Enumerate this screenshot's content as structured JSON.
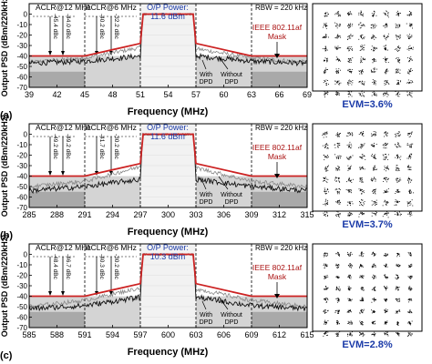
{
  "figure": {
    "y_label": "Output PSD (dBm/220kHz)",
    "x_label": "Frequency (MHz)",
    "ylim": [
      -70,
      10
    ],
    "yticks": [
      0,
      -10,
      -20,
      -30,
      -40,
      -50,
      -60,
      -70
    ],
    "colors": {
      "mask": "#cc2222",
      "with_dpd": "#111111",
      "without_dpd": "#888888",
      "channel_bg": "#f2f2f2",
      "shade_dark": "#a9a9a9",
      "shade_light": "#d4d4d4",
      "title_blue": "#1a3aa8",
      "evm_blue": "#1a3aa8",
      "mask_text": "#aa1111"
    },
    "panels": [
      {
        "label": "(a)",
        "rbw": "RBW = 220 kHz",
        "power_title": "O/P Power:",
        "power_value": "11.6 dBm",
        "aclr12_label": "ACLR@12 MHz",
        "aclr6_label": "ACLR@6 MHz",
        "aclr_values": [
          "-45.4 dBc",
          "-44.0 dBc",
          "-40.2 dBc",
          "-32.2 dBc"
        ],
        "mask_label_line1": "IEEE 802.11af",
        "mask_label_line2": "Mask",
        "with_label": [
          "With",
          "DPD"
        ],
        "without_label": [
          "Without",
          "DPD"
        ],
        "evm": "EVM=3.6%",
        "chart_data": {
          "type": "line",
          "xlim": [
            39,
            69
          ],
          "xticks": [
            39,
            42,
            45,
            48,
            51,
            54,
            57,
            60,
            63,
            66,
            69
          ],
          "dashed_x": [
            45,
            51,
            57,
            63
          ],
          "channel": [
            51,
            57
          ],
          "in_band_dbm": 0,
          "mask": {
            "x": [
              39,
              45,
              51,
              51.3,
              56.7,
              57,
              63,
              69
            ],
            "y": [
              -40,
              -40,
              -28,
              0,
              0,
              -28,
              -40,
              -40
            ]
          },
          "series": [
            {
              "name": "With DPD",
              "edges": {
                "x": [
                  39,
                  45,
                  51,
                  57,
                  63,
                  69
                ],
                "y": [
                  -47,
                  -45,
                  -40,
                  -40,
                  -45,
                  -47
                ]
              }
            },
            {
              "name": "Without DPD",
              "edges": {
                "x": [
                  39,
                  45,
                  51,
                  57,
                  63,
                  69
                ],
                "y": [
                  -46,
                  -42,
                  -32,
                  -33,
                  -42,
                  -46
                ]
              }
            }
          ]
        }
      },
      {
        "label": "(b)",
        "rbw": "RBW = 220 kHz",
        "power_title": "O/P Power:",
        "power_value": "11.6 dBm",
        "aclr12_label": "ACLR@12 MHz",
        "aclr6_label": "ACLR@6 MHz",
        "aclr_values": [
          "-49.2 dBc",
          "-49.2 dBc",
          "-41.7 dBc",
          "-30.2 dBc"
        ],
        "mask_label_line1": "IEEE 802.11af",
        "mask_label_line2": "Mask",
        "with_label": [
          "With",
          "DPD"
        ],
        "without_label": [
          "Without",
          "DPD"
        ],
        "evm": "EVM=3.7%",
        "chart_data": {
          "type": "line",
          "xlim": [
            285,
            315
          ],
          "xticks": [
            285,
            288,
            291,
            294,
            297,
            300,
            303,
            306,
            309,
            312,
            315
          ],
          "dashed_x": [
            291,
            297,
            303,
            309
          ],
          "channel": [
            297,
            303
          ],
          "in_band_dbm": 0,
          "mask": {
            "x": [
              285,
              291,
              297,
              297.3,
              302.7,
              303,
              309,
              315
            ],
            "y": [
              -40,
              -40,
              -28,
              0,
              0,
              -28,
              -40,
              -40
            ]
          },
          "series": [
            {
              "name": "With DPD",
              "edges": {
                "x": [
                  285,
                  291,
                  297,
                  303,
                  309,
                  315
                ],
                "y": [
                  -54,
                  -50,
                  -43,
                  -43,
                  -50,
                  -54
                ]
              }
            },
            {
              "name": "Without DPD",
              "edges": {
                "x": [
                  285,
                  291,
                  297,
                  303,
                  309,
                  315
                ],
                "y": [
                  -50,
                  -45,
                  -31,
                  -32,
                  -45,
                  -50
                ]
              }
            }
          ]
        }
      },
      {
        "label": "(c)",
        "rbw": "RBW = 220 kHz",
        "power_title": "O/P Power:",
        "power_value": "10.3 dBm",
        "aclr12_label": "ACLR@12 MHz",
        "aclr6_label": "ACLR@6 MHz",
        "aclr_values": [
          "-48.4 dBc",
          "-46.7 dBc",
          "-40.3 dBc",
          "-30.2 dBc"
        ],
        "mask_label_line1": "IEEE 802.11af",
        "mask_label_line2": "Mask",
        "with_label": [
          "With",
          "DPD"
        ],
        "without_label": [
          "Without",
          "DPD"
        ],
        "evm": "EVM=2.8%",
        "chart_data": {
          "type": "line",
          "xlim": [
            585,
            615
          ],
          "xticks": [
            585,
            588,
            591,
            594,
            597,
            600,
            603,
            606,
            609,
            612,
            615
          ],
          "dashed_x": [
            591,
            597,
            603,
            609
          ],
          "channel": [
            597,
            603
          ],
          "in_band_dbm": 0,
          "mask": {
            "x": [
              585,
              591,
              597,
              597.3,
              602.7,
              603,
              609,
              615
            ],
            "y": [
              -40,
              -40,
              -28,
              0,
              0,
              -28,
              -40,
              -40
            ]
          },
          "series": [
            {
              "name": "With DPD",
              "edges": {
                "x": [
                  585,
                  591,
                  597,
                  603,
                  609,
                  615
                ],
                "y": [
                  -52,
                  -49,
                  -41,
                  -41,
                  -49,
                  -52
                ]
              }
            },
            {
              "name": "Without DPD",
              "edges": {
                "x": [
                  585,
                  591,
                  597,
                  603,
                  609,
                  615
                ],
                "y": [
                  -50,
                  -44,
                  -32,
                  -33,
                  -44,
                  -50
                ]
              }
            }
          ]
        }
      }
    ]
  }
}
